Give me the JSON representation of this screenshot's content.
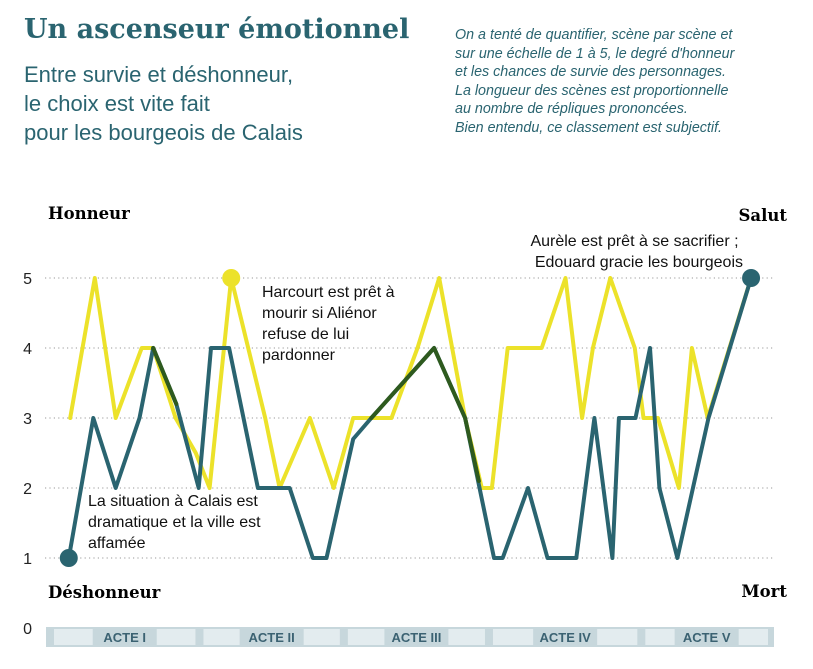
{
  "header": {
    "title": "Un ascenseur émotionnel",
    "subtitle_lines": [
      "Entre survie et déshonneur,",
      "le choix est vite fait",
      "pour les bourgeois de Calais"
    ],
    "intro_lines": [
      "On a tenté de quantifier, scène par scène et",
      "sur une échelle de 1 à 5, le degré d'honneur",
      "et les chances de survie des personnages.",
      "La longueur des scènes est proportionnelle",
      "au nombre de répliques prononcées.",
      "Bien entendu, ce classement est subjectif."
    ]
  },
  "colors": {
    "title": "#2a6470",
    "honneur": "#ece22a",
    "salut": "#2a6470",
    "overlap": "#2e5a1e",
    "grid": "#9a9a9a",
    "act_band": "#c7d7dc",
    "act_box": "#e3ecef",
    "act_text": "#3b6272"
  },
  "chart_data": {
    "type": "line",
    "y_ticks": [
      "0",
      "1",
      "2",
      "3",
      "4",
      "5"
    ],
    "ylim": [
      0,
      5
    ],
    "xlim": [
      0,
      100
    ],
    "left_axis_top_label": "Honneur",
    "left_axis_bottom_label": "Déshonneur",
    "right_axis_top_label": "Salut",
    "right_axis_bottom_label": "Mort",
    "acts": [
      {
        "label": "ACTE I",
        "start": 0,
        "end": 20.7
      },
      {
        "label": "ACTE II",
        "start": 20.7,
        "end": 40.7
      },
      {
        "label": "ACTE III",
        "start": 40.7,
        "end": 60.8
      },
      {
        "label": "ACTE IV",
        "start": 60.8,
        "end": 81.9
      },
      {
        "label": "ACTE V",
        "start": 81.9,
        "end": 100
      }
    ],
    "series": [
      {
        "name": "Honneur",
        "points": [
          [
            2.8,
            3
          ],
          [
            6.2,
            5
          ],
          [
            9.1,
            3
          ],
          [
            12.7,
            4
          ],
          [
            14.3,
            4
          ],
          [
            17.4,
            3
          ],
          [
            20.2,
            2.5
          ],
          [
            22.1,
            2
          ],
          [
            25.1,
            5
          ],
          [
            29.8,
            3
          ],
          [
            31.8,
            2
          ],
          [
            36,
            3
          ],
          [
            39.3,
            2
          ],
          [
            42,
            3
          ],
          [
            44.5,
            3
          ],
          [
            47.3,
            3
          ],
          [
            50.9,
            4
          ],
          [
            53.9,
            5
          ],
          [
            57.5,
            3
          ],
          [
            59.8,
            2
          ],
          [
            61.2,
            2
          ],
          [
            63.4,
            4
          ],
          [
            68.1,
            4
          ],
          [
            71.4,
            5
          ],
          [
            73.7,
            3
          ],
          [
            75.2,
            4
          ],
          [
            77.6,
            5
          ],
          [
            81,
            4
          ],
          [
            82.2,
            3
          ],
          [
            84.2,
            3
          ],
          [
            87.1,
            2
          ],
          [
            88.9,
            4
          ],
          [
            91.1,
            3
          ],
          [
            94.1,
            4
          ],
          [
            97.1,
            5
          ]
        ]
      },
      {
        "name": "Salut",
        "points": [
          [
            2.6,
            1
          ],
          [
            6,
            3
          ],
          [
            9.1,
            2
          ],
          [
            12.4,
            3
          ],
          [
            14.3,
            4
          ],
          [
            17.5,
            3.2
          ],
          [
            20.6,
            2
          ],
          [
            22.3,
            4
          ],
          [
            24.8,
            4
          ],
          [
            28.8,
            2
          ],
          [
            33.2,
            2
          ],
          [
            36.4,
            1
          ],
          [
            38.3,
            1
          ],
          [
            42,
            2.7
          ],
          [
            44.5,
            3
          ],
          [
            53.2,
            4
          ],
          [
            57.5,
            3
          ],
          [
            61.5,
            1
          ],
          [
            62.7,
            1
          ],
          [
            66.2,
            2
          ],
          [
            68.9,
            1
          ],
          [
            72.9,
            1
          ],
          [
            75.4,
            3
          ],
          [
            77.9,
            1
          ],
          [
            78.8,
            3
          ],
          [
            81.1,
            3
          ],
          [
            83.1,
            4
          ],
          [
            84.4,
            2
          ],
          [
            86.9,
            1
          ],
          [
            91.2,
            3
          ],
          [
            97.1,
            5
          ]
        ]
      }
    ],
    "overlap_segments": [
      [
        [
          14.3,
          4
        ],
        [
          17.5,
          3.2
        ]
      ],
      [
        [
          44.5,
          3
        ],
        [
          53.2,
          4
        ],
        [
          57.5,
          3
        ],
        [
          59.4,
          2.1
        ]
      ]
    ],
    "markers": [
      {
        "series": "Salut",
        "x": 2.6,
        "y": 1
      },
      {
        "series": "Honneur",
        "x": 25.1,
        "y": 5
      },
      {
        "series": "Salut",
        "x": 97.1,
        "y": 5
      }
    ],
    "annotations": [
      {
        "lines": [
          "La situation à Calais est",
          "dramatique et la ville est",
          "affamée"
        ]
      },
      {
        "lines": [
          "Harcourt est prêt à",
          "mourir si Aliénor",
          "refuse de lui",
          "pardonner"
        ]
      },
      {
        "lines": [
          "Aurèle est prêt à se sacrifier ;",
          "Edouard gracie les bourgeois"
        ]
      }
    ]
  }
}
